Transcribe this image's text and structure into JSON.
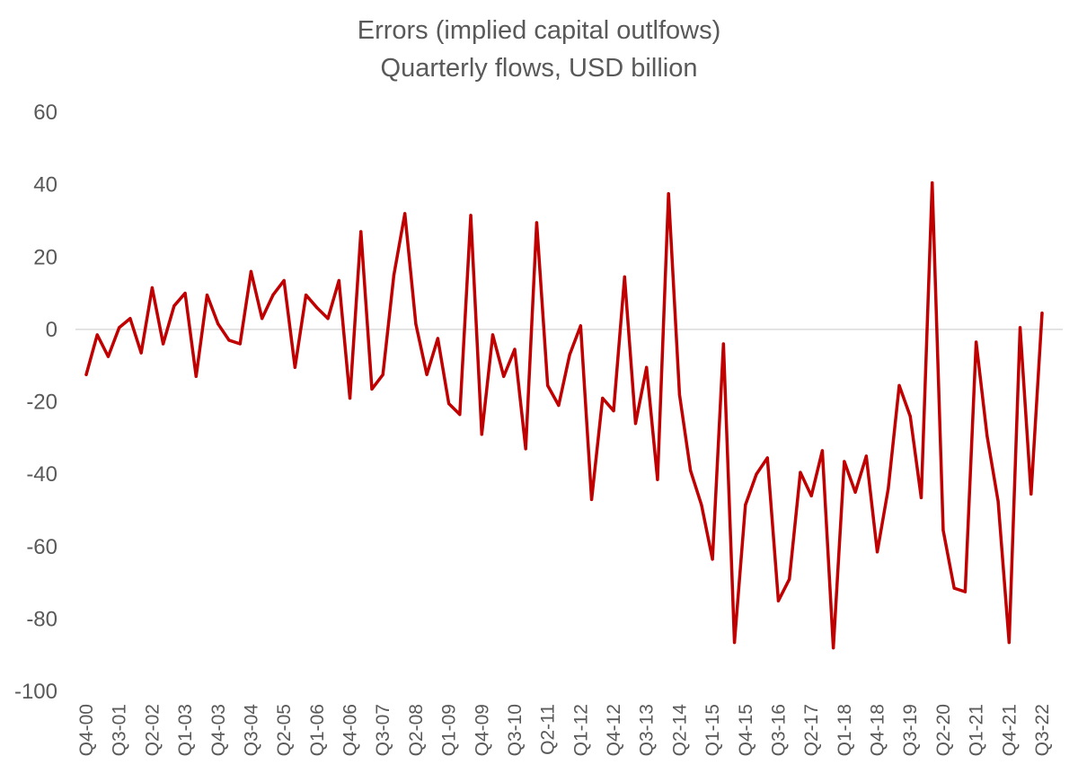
{
  "chart_data": {
    "type": "line",
    "title": "Errors (implied capital outlfows)",
    "subtitle": "Quarterly flows, USD billion",
    "xlabel": "",
    "ylabel": "",
    "ylim": [
      -100,
      60
    ],
    "yticks": [
      60,
      40,
      20,
      0,
      -20,
      -40,
      -60,
      -80,
      -100
    ],
    "grid": false,
    "zero_line": true,
    "line_color": "#C00000",
    "x_tick_labels": [
      "Q4-00",
      "Q3-01",
      "Q2-02",
      "Q1-03",
      "Q4-03",
      "Q3-04",
      "Q2-05",
      "Q1-06",
      "Q4-06",
      "Q3-07",
      "Q2-08",
      "Q1-09",
      "Q4-09",
      "Q3-10",
      "Q2-11",
      "Q1-12",
      "Q4-12",
      "Q3-13",
      "Q2-14",
      "Q1-15",
      "Q4-15",
      "Q3-16",
      "Q2-17",
      "Q1-18",
      "Q4-18",
      "Q3-19",
      "Q2-20",
      "Q1-21",
      "Q4-21",
      "Q3-22"
    ],
    "x": [
      "Q4-00",
      "Q1-01",
      "Q2-01",
      "Q3-01",
      "Q4-01",
      "Q1-02",
      "Q2-02",
      "Q3-02",
      "Q4-02",
      "Q1-03",
      "Q2-03",
      "Q3-03",
      "Q4-03",
      "Q1-04",
      "Q2-04",
      "Q3-04",
      "Q4-04",
      "Q1-05",
      "Q2-05",
      "Q3-05",
      "Q4-05",
      "Q1-06",
      "Q2-06",
      "Q3-06",
      "Q4-06",
      "Q1-07",
      "Q2-07",
      "Q3-07",
      "Q4-07",
      "Q1-08",
      "Q2-08",
      "Q3-08",
      "Q4-08",
      "Q1-09",
      "Q2-09",
      "Q3-09",
      "Q4-09",
      "Q1-10",
      "Q2-10",
      "Q3-10",
      "Q4-10",
      "Q1-11",
      "Q2-11",
      "Q3-11",
      "Q4-11",
      "Q1-12",
      "Q2-12",
      "Q3-12",
      "Q4-12",
      "Q1-13",
      "Q2-13",
      "Q3-13",
      "Q4-13",
      "Q1-14",
      "Q2-14",
      "Q3-14",
      "Q4-14",
      "Q1-15",
      "Q2-15",
      "Q3-15",
      "Q4-15",
      "Q1-16",
      "Q2-16",
      "Q3-16",
      "Q4-16",
      "Q1-17",
      "Q2-17",
      "Q3-17",
      "Q4-17",
      "Q1-18",
      "Q2-18",
      "Q3-18",
      "Q4-18",
      "Q1-19",
      "Q2-19",
      "Q3-19",
      "Q4-19",
      "Q1-20",
      "Q2-20",
      "Q3-20",
      "Q4-20",
      "Q1-21",
      "Q2-21",
      "Q3-21",
      "Q4-21",
      "Q1-22",
      "Q2-22",
      "Q3-22"
    ],
    "series": [
      {
        "values": [
          -12.5,
          -1.5,
          -7.5,
          0.5,
          3,
          -6.5,
          11.5,
          -4,
          6.5,
          10,
          -13,
          9.5,
          1.5,
          -3,
          -4,
          16,
          3,
          9.5,
          13.5,
          -10.5,
          9.5,
          6,
          3,
          13.5,
          -19,
          27,
          -16.5,
          -12.5,
          15,
          32,
          1.5,
          -12.5,
          -2.5,
          -20.5,
          -23.5,
          31.5,
          -29,
          -1.5,
          -13,
          -5.5,
          -33,
          29.5,
          -15.5,
          -21,
          -7,
          1,
          -47,
          -19,
          -22.5,
          14.5,
          -26,
          -10.5,
          -41.5,
          37.5,
          -18,
          -39,
          -48.5,
          -63.5,
          -4,
          -86.5,
          -48.5,
          -40,
          -35.5,
          -75,
          -69,
          -39.5,
          -46,
          -33.5,
          -88,
          -36.5,
          -45,
          -35,
          -61.5,
          -44,
          -15.5,
          -24,
          -46.5,
          40.5,
          -55.5,
          -71.5,
          -72.5,
          -3.5,
          -29.5,
          -47.5,
          -86.5,
          0.5,
          -45.5,
          4.5
        ]
      }
    ]
  }
}
